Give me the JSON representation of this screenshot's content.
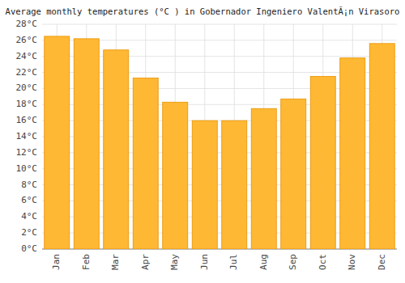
{
  "chart_data": {
    "type": "bar",
    "title": "Average monthly temperatures (°C ) in Gobernador Ingeniero ValentÃ¡n Virasoro",
    "categories": [
      "Jan",
      "Feb",
      "Mar",
      "Apr",
      "May",
      "Jun",
      "Jul",
      "Aug",
      "Sep",
      "Oct",
      "Nov",
      "Dec"
    ],
    "values": [
      26.5,
      26.2,
      24.8,
      21.3,
      18.3,
      16.0,
      16.0,
      17.5,
      18.7,
      21.5,
      23.8,
      25.6
    ],
    "color": "#FFB833",
    "ylim": [
      0,
      28
    ],
    "yticks": [
      {
        "value": 0,
        "label": "0°C"
      },
      {
        "value": 2,
        "label": "2°C"
      },
      {
        "value": 4,
        "label": "4°C"
      },
      {
        "value": 6,
        "label": "6°C"
      },
      {
        "value": 8,
        "label": "8°C"
      },
      {
        "value": 10,
        "label": "10°C"
      },
      {
        "value": 12,
        "label": "12°C"
      },
      {
        "value": 14,
        "label": "14°C"
      },
      {
        "value": 16,
        "label": "16°C"
      },
      {
        "value": 18,
        "label": "18°C"
      },
      {
        "value": 20,
        "label": "20°C"
      },
      {
        "value": 22,
        "label": "22°C"
      },
      {
        "value": 24,
        "label": "24°C"
      },
      {
        "value": 26,
        "label": "26°C"
      },
      {
        "value": 28,
        "label": "28°C"
      }
    ],
    "grid": true
  }
}
